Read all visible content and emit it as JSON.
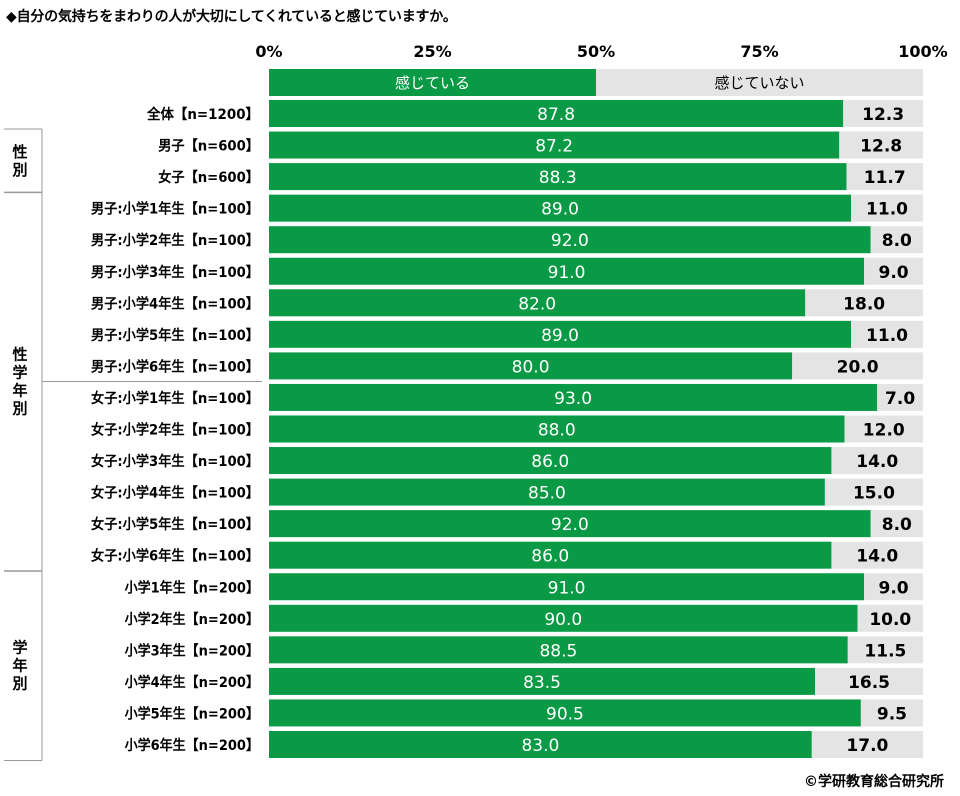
{
  "title": "◆自分の気持ちをまわりの人が大切にしてくれていると感じていますか。",
  "credit": "©学研教育総合研究所",
  "colors": {
    "felt": "#0a9a45",
    "not_felt": "#e4e4e4",
    "group_line": "#9a9a9a"
  },
  "chart_data": {
    "type": "bar",
    "orientation": "horizontal",
    "stacked": true,
    "percent_stacked": true,
    "xlim": [
      0,
      100
    ],
    "xticks": [
      "0%",
      "25%",
      "50%",
      "75%",
      "100%"
    ],
    "grid": false,
    "legend_position": "top, inside first stacked bar",
    "legend": [
      "感じている",
      "感じていない"
    ],
    "categories": [
      "全体【n=1200】",
      "男子【n=600】",
      "女子【n=600】",
      "男子:小学1年生【n=100】",
      "男子:小学2年生【n=100】",
      "男子:小学3年生【n=100】",
      "男子:小学4年生【n=100】",
      "男子:小学5年生【n=100】",
      "男子:小学6年生【n=100】",
      "女子:小学1年生【n=100】",
      "女子:小学2年生【n=100】",
      "女子:小学3年生【n=100】",
      "女子:小学4年生【n=100】",
      "女子:小学5年生【n=100】",
      "女子:小学6年生【n=100】",
      "小学1年生【n=200】",
      "小学2年生【n=200】",
      "小学3年生【n=200】",
      "小学4年生【n=200】",
      "小学5年生【n=200】",
      "小学6年生【n=200】"
    ],
    "series": [
      {
        "name": "感じている",
        "values": [
          87.8,
          87.2,
          88.3,
          89.0,
          92.0,
          91.0,
          82.0,
          89.0,
          80.0,
          93.0,
          88.0,
          86.0,
          85.0,
          92.0,
          86.0,
          91.0,
          90.0,
          88.5,
          83.5,
          90.5,
          83.0
        ]
      },
      {
        "name": "感じていない",
        "values": [
          12.3,
          12.8,
          11.7,
          11.0,
          8.0,
          9.0,
          18.0,
          11.0,
          20.0,
          7.0,
          12.0,
          14.0,
          15.0,
          8.0,
          14.0,
          9.0,
          10.0,
          11.5,
          16.5,
          9.5,
          17.0
        ]
      }
    ],
    "groups": [
      {
        "label": "性別",
        "start": 1,
        "end": 2
      },
      {
        "label": "性学年別",
        "start": 3,
        "end": 14
      },
      {
        "label": "学年別",
        "start": 15,
        "end": 20
      }
    ]
  }
}
